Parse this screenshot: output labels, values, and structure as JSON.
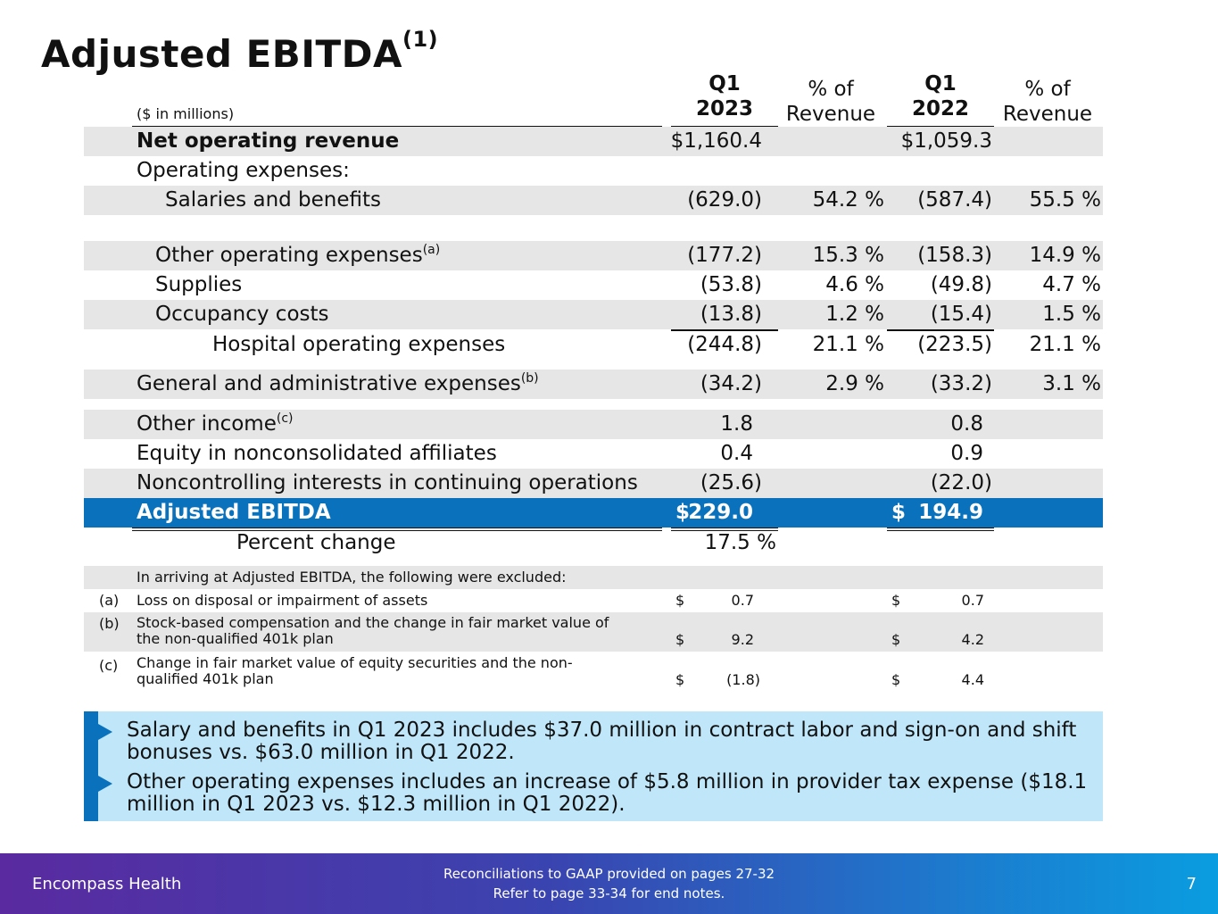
{
  "title": {
    "text": "Adjusted EBITDA",
    "sup": "(1)"
  },
  "header": {
    "units": "($ in millions)",
    "col1_l1": "Q1",
    "col1_l2": "2023",
    "col2_l1": "% of",
    "col2_l2": "Revenue",
    "col3_l1": "Q1",
    "col3_l2": "2022",
    "col4_l1": "% of",
    "col4_l2": "Revenue"
  },
  "rows": {
    "net_rev": {
      "label": "Net operating revenue",
      "v1": "$1,160.4",
      "v2": "$1,059.3"
    },
    "opex": {
      "label": "Operating expenses:"
    },
    "salaries": {
      "label": "Salaries and benefits",
      "v1": "(629.0)",
      "p1": "54.2 %",
      "v2": "(587.4)",
      "p2": "55.5 %"
    },
    "other_opex": {
      "label": "Other operating expenses",
      "sup": "(a)",
      "v1": "(177.2)",
      "p1": "15.3 %",
      "v2": "(158.3)",
      "p2": "14.9 %"
    },
    "supplies": {
      "label": "Supplies",
      "v1": "(53.8)",
      "p1": "4.6 %",
      "v2": "(49.8)",
      "p2": "4.7 %"
    },
    "occupancy": {
      "label": "Occupancy costs",
      "v1": "(13.8)",
      "p1": "1.2 %",
      "v2": "(15.4)",
      "p2": "1.5 %"
    },
    "hospital": {
      "label": "Hospital operating expenses",
      "v1": "(244.8)",
      "p1": "21.1 %",
      "v2": "(223.5)",
      "p2": "21.1 %"
    },
    "gna": {
      "label": "General and administrative expenses",
      "sup": "(b)",
      "v1": "(34.2)",
      "p1": "2.9 %",
      "v2": "(33.2)",
      "p2": "3.1 %"
    },
    "other_income": {
      "label": "Other income",
      "sup": "(c)",
      "v1": "1.8",
      "v2": "0.8"
    },
    "equity": {
      "label": "Equity in nonconsolidated affiliates",
      "v1": "0.4",
      "v2": "0.9"
    },
    "nci": {
      "label": "Noncontrolling interests in continuing operations",
      "v1": "(25.6)",
      "v2": "(22.0)"
    },
    "adj_ebitda": {
      "label": "Adjusted EBITDA",
      "d1": "$",
      "v1": "229.0",
      "d2": "$",
      "v2": "194.9"
    },
    "pct_change": {
      "label": "Percent change",
      "v1": "17.5 %"
    }
  },
  "notes": {
    "intro": "In arriving at Adjusted EBITDA, the following were excluded:",
    "a": {
      "mark": "(a)",
      "text": "Loss on disposal or impairment of assets",
      "d1": "$",
      "v1": "0.7",
      "d2": "$",
      "v2": "0.7"
    },
    "b": {
      "mark": "(b)",
      "text1": "Stock-based compensation and the change in fair market value of",
      "text2": "the non-qualified 401k plan",
      "d1": "$",
      "v1": "9.2",
      "d2": "$",
      "v2": "4.2"
    },
    "c": {
      "mark": "(c)",
      "text1": "Change in fair market value of equity securities and the non-",
      "text2": "qualified 401k plan",
      "d1": "$",
      "v1": "(1.8)",
      "d2": "$",
      "v2": "4.4"
    }
  },
  "callout": {
    "b1_l1": "Salary and benefits in Q1 2023 includes $37.0 million in contract labor and sign-on and shift",
    "b1_l2": "bonuses vs. $63.0 million in Q1 2022.",
    "b2_l1": "Other operating expenses includes an increase of $5.8 million in provider tax expense ($18.1",
    "b2_l2": "million in Q1 2023 vs. $12.3 million in Q1 2022)."
  },
  "footer": {
    "brand": "Encompass Health",
    "line1": "Reconciliations to GAAP provided on pages 27-32",
    "line2": "Refer to page 33-34 for end notes.",
    "page": "7"
  },
  "colors": {
    "accent": "#0a72bd",
    "shade": "#e6e6e6",
    "callout_bg": "#bfe6f9"
  }
}
